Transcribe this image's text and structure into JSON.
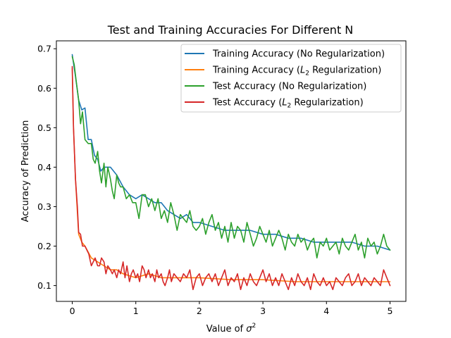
{
  "chart_data": {
    "type": "line",
    "title": "Test and Training Accuracies For Different N",
    "xlabel": "Value of σ²",
    "ylabel": "Accuracy of Prediction",
    "xlim": [
      -0.25,
      5.25
    ],
    "ylim": [
      0.06,
      0.72
    ],
    "xticks": [
      0,
      1,
      2,
      3,
      4,
      5
    ],
    "xtick_labels": [
      "0",
      "1",
      "2",
      "3",
      "4",
      "5"
    ],
    "yticks": [
      0.1,
      0.2,
      0.3,
      0.4,
      0.5,
      0.6,
      0.7
    ],
    "ytick_labels": [
      "0.1",
      "0.2",
      "0.3",
      "0.4",
      "0.5",
      "0.6",
      "0.7"
    ],
    "grid": false,
    "legend_position": "top-right",
    "series": [
      {
        "name": "Training Accuracy (No Regularization)",
        "label_main": "Training Accuracy (No Regularization)",
        "label_sub": "",
        "label_tail": "",
        "color": "#1f77b4",
        "x": [
          0,
          0.05,
          0.1,
          0.15,
          0.2,
          0.25,
          0.3,
          0.35,
          0.4,
          0.45,
          0.5,
          0.6,
          0.7,
          0.8,
          0.9,
          1.0,
          1.1,
          1.2,
          1.3,
          1.4,
          1.5,
          1.6,
          1.7,
          1.8,
          1.9,
          2.0,
          2.2,
          2.4,
          2.6,
          2.8,
          3.0,
          3.2,
          3.4,
          3.6,
          3.8,
          4.0,
          4.2,
          4.4,
          4.6,
          4.8,
          5.0
        ],
        "y": [
          0.685,
          0.63,
          0.57,
          0.545,
          0.55,
          0.47,
          0.47,
          0.43,
          0.42,
          0.39,
          0.4,
          0.4,
          0.38,
          0.35,
          0.33,
          0.32,
          0.33,
          0.32,
          0.31,
          0.31,
          0.29,
          0.28,
          0.27,
          0.28,
          0.26,
          0.26,
          0.25,
          0.24,
          0.24,
          0.24,
          0.23,
          0.23,
          0.22,
          0.22,
          0.21,
          0.21,
          0.21,
          0.21,
          0.2,
          0.2,
          0.19
        ]
      },
      {
        "name": "Training Accuracy (L2 Regularization)",
        "label_main": "Training Accuracy (",
        "label_sub": "2",
        "label_tail": " Regularization)",
        "color": "#ff7f0e",
        "x": [
          0,
          0.02,
          0.05,
          0.1,
          0.15,
          0.2,
          0.3,
          0.4,
          0.5,
          0.6,
          0.7,
          0.8,
          1.0,
          1.2,
          1.4,
          1.6,
          1.8,
          2.0,
          2.5,
          3.0,
          3.5,
          4.0,
          4.5,
          5.0
        ],
        "y": [
          0.65,
          0.5,
          0.37,
          0.23,
          0.21,
          0.2,
          0.17,
          0.16,
          0.15,
          0.14,
          0.14,
          0.13,
          0.12,
          0.13,
          0.12,
          0.12,
          0.12,
          0.12,
          0.115,
          0.115,
          0.11,
          0.11,
          0.11,
          0.11
        ]
      },
      {
        "name": "Test Accuracy (No Regularization)",
        "label_main": "Test Accuracy (No Regularization)",
        "label_sub": "",
        "label_tail": "",
        "color": "#2ca02c",
        "x": [
          0,
          0.03,
          0.06,
          0.1,
          0.13,
          0.16,
          0.2,
          0.25,
          0.3,
          0.33,
          0.36,
          0.4,
          0.43,
          0.46,
          0.5,
          0.53,
          0.56,
          0.6,
          0.63,
          0.66,
          0.7,
          0.73,
          0.76,
          0.8,
          0.85,
          0.9,
          0.95,
          1.0,
          1.05,
          1.1,
          1.15,
          1.2,
          1.25,
          1.3,
          1.35,
          1.4,
          1.45,
          1.5,
          1.55,
          1.6,
          1.65,
          1.7,
          1.75,
          1.8,
          1.85,
          1.9,
          1.95,
          2.0,
          2.05,
          2.1,
          2.15,
          2.2,
          2.25,
          2.3,
          2.35,
          2.4,
          2.45,
          2.5,
          2.55,
          2.6,
          2.65,
          2.7,
          2.75,
          2.8,
          2.85,
          2.9,
          2.95,
          3.0,
          3.05,
          3.1,
          3.15,
          3.2,
          3.25,
          3.3,
          3.35,
          3.4,
          3.45,
          3.5,
          3.55,
          3.6,
          3.65,
          3.7,
          3.75,
          3.8,
          3.85,
          3.9,
          3.95,
          4.0,
          4.05,
          4.1,
          4.15,
          4.2,
          4.25,
          4.3,
          4.35,
          4.4,
          4.45,
          4.5,
          4.55,
          4.6,
          4.65,
          4.7,
          4.75,
          4.8,
          4.85,
          4.9,
          4.95,
          5.0
        ],
        "y": [
          0.68,
          0.66,
          0.62,
          0.57,
          0.51,
          0.54,
          0.47,
          0.46,
          0.46,
          0.42,
          0.41,
          0.44,
          0.39,
          0.36,
          0.41,
          0.35,
          0.4,
          0.37,
          0.34,
          0.32,
          0.38,
          0.36,
          0.35,
          0.35,
          0.32,
          0.33,
          0.31,
          0.31,
          0.27,
          0.33,
          0.33,
          0.3,
          0.32,
          0.29,
          0.32,
          0.27,
          0.29,
          0.26,
          0.31,
          0.28,
          0.24,
          0.28,
          0.27,
          0.26,
          0.29,
          0.25,
          0.24,
          0.25,
          0.27,
          0.23,
          0.26,
          0.28,
          0.24,
          0.26,
          0.22,
          0.25,
          0.21,
          0.26,
          0.22,
          0.25,
          0.24,
          0.21,
          0.26,
          0.23,
          0.2,
          0.22,
          0.25,
          0.23,
          0.21,
          0.24,
          0.2,
          0.22,
          0.24,
          0.22,
          0.19,
          0.23,
          0.21,
          0.2,
          0.23,
          0.21,
          0.22,
          0.19,
          0.21,
          0.22,
          0.17,
          0.21,
          0.2,
          0.22,
          0.19,
          0.2,
          0.21,
          0.18,
          0.22,
          0.2,
          0.19,
          0.21,
          0.23,
          0.19,
          0.21,
          0.17,
          0.22,
          0.2,
          0.21,
          0.18,
          0.2,
          0.23,
          0.2,
          0.19
        ]
      },
      {
        "name": "Test Accuracy (L2 Regularization)",
        "label_main": "Test Accuracy (",
        "label_sub": "2",
        "label_tail": " Regularization)",
        "color": "#d62728",
        "x": [
          0,
          0.02,
          0.05,
          0.08,
          0.1,
          0.13,
          0.16,
          0.2,
          0.23,
          0.26,
          0.3,
          0.33,
          0.36,
          0.4,
          0.43,
          0.46,
          0.5,
          0.53,
          0.56,
          0.6,
          0.63,
          0.66,
          0.7,
          0.73,
          0.76,
          0.8,
          0.83,
          0.86,
          0.9,
          0.93,
          0.96,
          1.0,
          1.03,
          1.06,
          1.1,
          1.13,
          1.16,
          1.2,
          1.23,
          1.26,
          1.3,
          1.33,
          1.36,
          1.4,
          1.43,
          1.46,
          1.5,
          1.53,
          1.56,
          1.6,
          1.65,
          1.7,
          1.75,
          1.8,
          1.85,
          1.9,
          1.95,
          2.0,
          2.05,
          2.1,
          2.15,
          2.2,
          2.25,
          2.3,
          2.35,
          2.4,
          2.45,
          2.5,
          2.55,
          2.6,
          2.65,
          2.7,
          2.75,
          2.8,
          2.85,
          2.9,
          2.95,
          3.0,
          3.05,
          3.1,
          3.15,
          3.2,
          3.25,
          3.3,
          3.35,
          3.4,
          3.45,
          3.5,
          3.55,
          3.6,
          3.65,
          3.7,
          3.75,
          3.8,
          3.85,
          3.9,
          3.95,
          4.0,
          4.05,
          4.1,
          4.15,
          4.2,
          4.25,
          4.3,
          4.35,
          4.4,
          4.45,
          4.5,
          4.55,
          4.6,
          4.65,
          4.7,
          4.75,
          4.8,
          4.85,
          4.9,
          4.95,
          5.0
        ],
        "y": [
          0.655,
          0.5,
          0.37,
          0.3,
          0.235,
          0.23,
          0.2,
          0.2,
          0.19,
          0.18,
          0.15,
          0.16,
          0.17,
          0.15,
          0.15,
          0.17,
          0.16,
          0.13,
          0.15,
          0.14,
          0.13,
          0.14,
          0.12,
          0.14,
          0.13,
          0.16,
          0.12,
          0.15,
          0.11,
          0.13,
          0.14,
          0.12,
          0.13,
          0.11,
          0.15,
          0.14,
          0.12,
          0.14,
          0.12,
          0.13,
          0.11,
          0.14,
          0.12,
          0.13,
          0.11,
          0.1,
          0.12,
          0.14,
          0.11,
          0.13,
          0.12,
          0.11,
          0.13,
          0.12,
          0.14,
          0.09,
          0.12,
          0.13,
          0.1,
          0.12,
          0.13,
          0.11,
          0.13,
          0.1,
          0.12,
          0.14,
          0.1,
          0.12,
          0.11,
          0.13,
          0.09,
          0.12,
          0.1,
          0.13,
          0.11,
          0.1,
          0.12,
          0.14,
          0.11,
          0.13,
          0.1,
          0.12,
          0.1,
          0.13,
          0.11,
          0.09,
          0.12,
          0.1,
          0.13,
          0.11,
          0.1,
          0.12,
          0.09,
          0.13,
          0.11,
          0.1,
          0.12,
          0.1,
          0.11,
          0.09,
          0.12,
          0.11,
          0.1,
          0.12,
          0.13,
          0.1,
          0.11,
          0.13,
          0.1,
          0.12,
          0.11,
          0.1,
          0.12,
          0.11,
          0.1,
          0.14,
          0.12,
          0.1
        ]
      }
    ]
  }
}
